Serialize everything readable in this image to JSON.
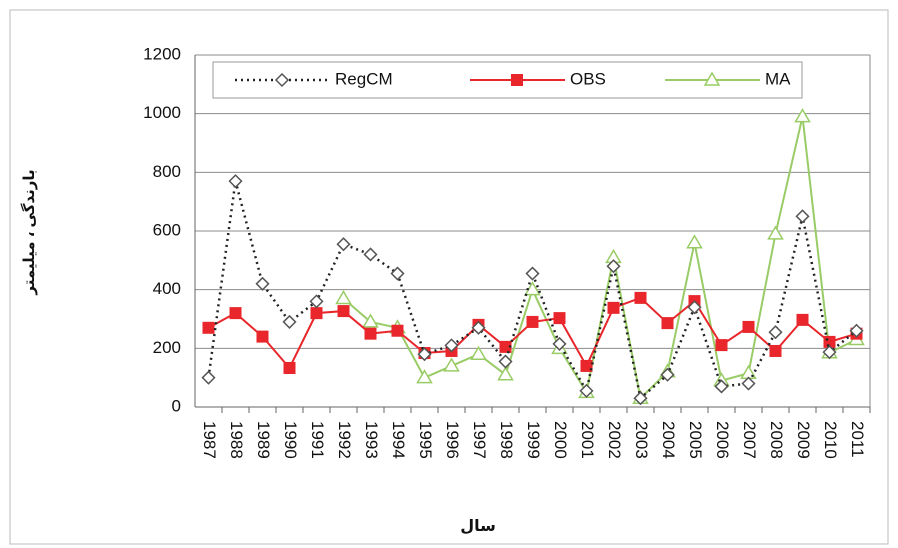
{
  "chart_data": {
    "type": "line",
    "x_label": "سال",
    "y_label": "بارندگی ، میلیمتر",
    "categories": [
      "1987",
      "1988",
      "1989",
      "1990",
      "1991",
      "1992",
      "1993",
      "1994",
      "1995",
      "1996",
      "1997",
      "1998",
      "1999",
      "2000",
      "2001",
      "2002",
      "2003",
      "2004",
      "2005",
      "2006",
      "2007",
      "2008",
      "2009",
      "2010",
      "2011"
    ],
    "ylim": [
      0,
      1200
    ],
    "yticks": [
      0,
      200,
      400,
      600,
      800,
      1000,
      1200
    ],
    "grid": true,
    "series": [
      {
        "name": "RegCM",
        "color": "#222222",
        "marker": "diamond",
        "dash": true,
        "values": [
          100,
          770,
          420,
          290,
          360,
          555,
          520,
          455,
          180,
          210,
          270,
          155,
          455,
          215,
          55,
          480,
          30,
          110,
          340,
          70,
          80,
          255,
          650,
          187,
          260
        ]
      },
      {
        "name": "OBS",
        "color": "#e8262b",
        "marker": "square",
        "dash": false,
        "values": [
          270,
          320,
          240,
          133,
          320,
          327,
          250,
          260,
          184,
          191,
          280,
          205,
          290,
          303,
          140,
          338,
          372,
          286,
          361,
          211,
          273,
          191,
          297,
          222,
          250
        ]
      },
      {
        "name": "MA",
        "color": "#99cc66",
        "marker": "triangle",
        "dash": false,
        "values": [
          null,
          null,
          null,
          null,
          null,
          370,
          290,
          270,
          100,
          140,
          180,
          110,
          400,
          200,
          50,
          510,
          30,
          120,
          560,
          90,
          115,
          590,
          990,
          185,
          230
        ]
      }
    ]
  }
}
